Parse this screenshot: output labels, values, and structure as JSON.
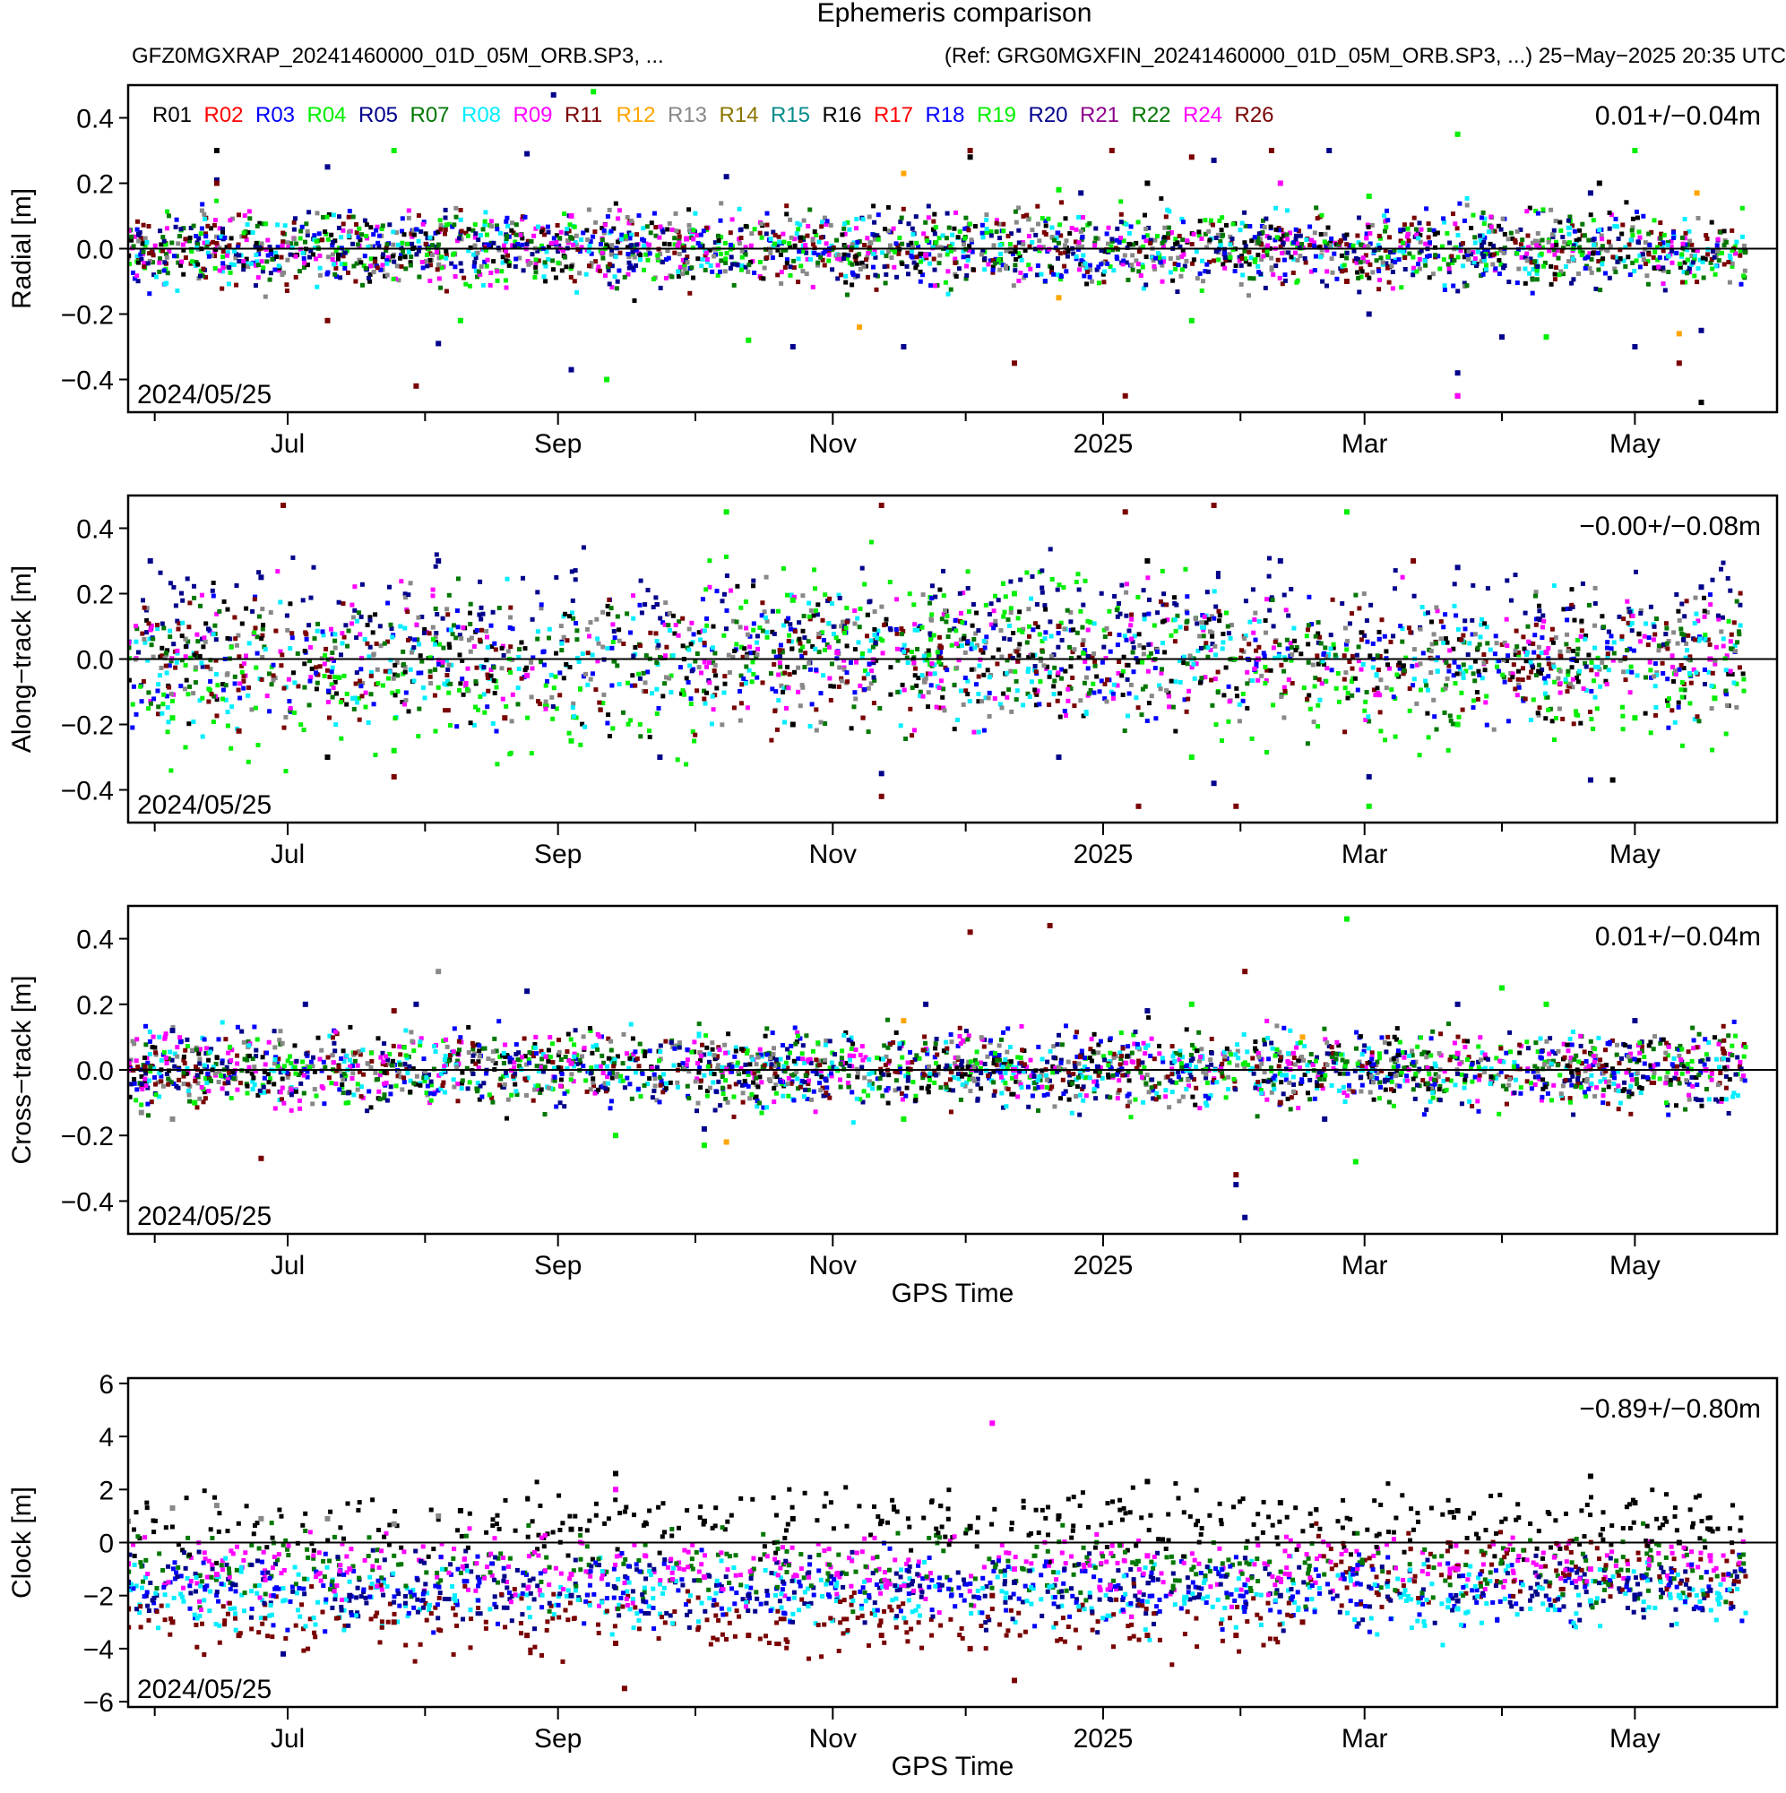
{
  "header": {
    "title": "Ephemeris comparison",
    "subtitle_left": "GFZ0MGXRAP_20241460000_01D_05M_ORB.SP3, ...",
    "subtitle_right": "(Ref: GRG0MGXFIN_20241460000_01D_05M_ORB.SP3, ...) 25−May−2025 20:35 UTC"
  },
  "legend": {
    "placement": "top-left of first panel",
    "entries": [
      {
        "name": "R01",
        "color": "#000000"
      },
      {
        "name": "R02",
        "color": "#ff0000"
      },
      {
        "name": "R03",
        "color": "#0000ff"
      },
      {
        "name": "R04",
        "color": "#00ee00"
      },
      {
        "name": "R05",
        "color": "#00008b"
      },
      {
        "name": "R07",
        "color": "#007700"
      },
      {
        "name": "R08",
        "color": "#00eeff"
      },
      {
        "name": "R09",
        "color": "#ff00ff"
      },
      {
        "name": "R11",
        "color": "#7a0000"
      },
      {
        "name": "R12",
        "color": "#ffa500"
      },
      {
        "name": "R13",
        "color": "#888888"
      },
      {
        "name": "R14",
        "color": "#8b7500"
      },
      {
        "name": "R15",
        "color": "#008b8b"
      },
      {
        "name": "R16",
        "color": "#000000"
      },
      {
        "name": "R17",
        "color": "#ff0000"
      },
      {
        "name": "R18",
        "color": "#0000ff"
      },
      {
        "name": "R19",
        "color": "#00ee00"
      },
      {
        "name": "R20",
        "color": "#00008b"
      },
      {
        "name": "R21",
        "color": "#8b008b"
      },
      {
        "name": "R22",
        "color": "#007700"
      },
      {
        "name": "R24",
        "color": "#ff00ff"
      },
      {
        "name": "R26",
        "color": "#7a0000"
      }
    ]
  },
  "chart_data": [
    {
      "type": "scatter",
      "ylabel": "Radial [m]",
      "xlabel": "",
      "ylim": [
        -0.5,
        0.5
      ],
      "yticks": [
        -0.4,
        -0.2,
        0.0,
        0.2,
        0.4
      ],
      "ytick_labels": [
        "−0.4",
        "−0.2",
        "0.0",
        "0.2",
        "0.4"
      ],
      "xticks": [
        "Jul",
        "Sep",
        "Nov",
        "2025",
        "Mar",
        "May"
      ],
      "stat_label": "0.01+/−0.04m",
      "date_label": "2024/05/25",
      "grid": false,
      "series": [
        {
          "name": "R05",
          "values": [
            [
              20,
              0.21
            ],
            [
              45,
              0.25
            ],
            [
              70,
              -0.29
            ],
            [
              90,
              0.29
            ],
            [
              96,
              0.47
            ],
            [
              100,
              -0.37
            ],
            [
              135,
              0.22
            ],
            [
              150,
              -0.3
            ],
            [
              175,
              -0.3
            ],
            [
              215,
              0.17
            ],
            [
              245,
              0.27
            ],
            [
              271,
              0.3
            ],
            [
              280,
              -0.2
            ],
            [
              300,
              -0.38
            ],
            [
              310,
              -0.27
            ],
            [
              330,
              0.17
            ],
            [
              340,
              -0.3
            ],
            [
              355,
              -0.25
            ]
          ]
        },
        {
          "name": "R04",
          "values": [
            [
              60,
              0.3
            ],
            [
              75,
              -0.22
            ],
            [
              105,
              0.48
            ],
            [
              108,
              -0.4
            ],
            [
              140,
              -0.28
            ],
            [
              210,
              0.18
            ],
            [
              240,
              -0.22
            ],
            [
              280,
              0.16
            ],
            [
              300,
              0.35
            ],
            [
              320,
              -0.27
            ],
            [
              340,
              0.3
            ]
          ]
        },
        {
          "name": "R11",
          "values": [
            [
              20,
              0.2
            ],
            [
              45,
              -0.22
            ],
            [
              65,
              -0.42
            ],
            [
              190,
              0.3
            ],
            [
              200,
              -0.35
            ],
            [
              222,
              0.3
            ],
            [
              225,
              -0.45
            ],
            [
              240,
              0.28
            ],
            [
              258,
              0.3
            ],
            [
              275,
              -0.1
            ],
            [
              300,
              -0.45
            ],
            [
              350,
              -0.35
            ]
          ]
        },
        {
          "name": "R24",
          "values": [
            [
              100,
              0.1
            ],
            [
              126,
              0.03
            ],
            [
              180,
              -0.02
            ],
            [
              260,
              0.2
            ],
            [
              300,
              -0.45
            ]
          ]
        },
        {
          "name": "R12",
          "values": [
            [
              165,
              -0.24
            ],
            [
              175,
              0.23
            ],
            [
              210,
              -0.15
            ],
            [
              350,
              -0.26
            ],
            [
              354,
              0.17
            ]
          ]
        },
        {
          "name": "R01",
          "values": [
            [
              20,
              0.3
            ],
            [
              190,
              0.28
            ],
            [
              230,
              0.2
            ],
            [
              332,
              0.2
            ],
            [
              355,
              -0.47
            ]
          ]
        }
      ]
    },
    {
      "type": "scatter",
      "ylabel": "Along−track [m]",
      "xlabel": "",
      "ylim": [
        -0.5,
        0.5
      ],
      "yticks": [
        -0.4,
        -0.2,
        0.0,
        0.2,
        0.4
      ],
      "ytick_labels": [
        "−0.4",
        "−0.2",
        "0.0",
        "0.2",
        "0.4"
      ],
      "xticks": [
        "Jul",
        "Sep",
        "Nov",
        "2025",
        "Mar",
        "May"
      ],
      "stat_label": "−0.00+/−0.08m",
      "date_label": "2024/05/25",
      "grid": false,
      "series": [
        {
          "name": "R05",
          "values": [
            [
              5,
              0.3
            ],
            [
              30,
              0.25
            ],
            [
              70,
              0.3
            ],
            [
              120,
              -0.3
            ],
            [
              170,
              -0.35
            ],
            [
              210,
              -0.3
            ],
            [
              245,
              -0.38
            ],
            [
              260,
              0.3
            ],
            [
              280,
              -0.36
            ],
            [
              300,
              0.28
            ],
            [
              330,
              -0.37
            ],
            [
              355,
              0.22
            ]
          ]
        },
        {
          "name": "R04",
          "values": [
            [
              10,
              -0.18
            ],
            [
              60,
              -0.28
            ],
            [
              100,
              -0.25
            ],
            [
              135,
              0.45
            ],
            [
              150,
              0.18
            ],
            [
              200,
              0.2
            ],
            [
              240,
              -0.3
            ],
            [
              275,
              0.45
            ],
            [
              280,
              -0.45
            ],
            [
              300,
              -0.2
            ],
            [
              340,
              -0.18
            ],
            [
              358,
              -0.12
            ]
          ]
        },
        {
          "name": "R11",
          "values": [
            [
              25,
              -0.22
            ],
            [
              35,
              0.47
            ],
            [
              60,
              -0.36
            ],
            [
              85,
              -0.18
            ],
            [
              170,
              0.47
            ],
            [
              170,
              -0.42
            ],
            [
              210,
              0.1
            ],
            [
              225,
              0.45
            ],
            [
              228,
              -0.45
            ],
            [
              245,
              0.47
            ],
            [
              250,
              -0.45
            ],
            [
              290,
              0.3
            ]
          ]
        },
        {
          "name": "R24",
          "values": [
            [
              0,
              0.05
            ],
            [
              90,
              -0.05
            ],
            [
              160,
              0.02
            ],
            [
              255,
              0.0
            ],
            [
              320,
              0.02
            ],
            [
              357,
              0.0
            ]
          ]
        },
        {
          "name": "R01",
          "values": [
            [
              45,
              -0.3
            ],
            [
              150,
              -0.2
            ],
            [
              230,
              0.3
            ],
            [
              335,
              -0.37
            ]
          ]
        }
      ]
    },
    {
      "type": "scatter",
      "ylabel": "Cross−track [m]",
      "xlabel": "GPS Time",
      "ylim": [
        -0.5,
        0.5
      ],
      "yticks": [
        -0.4,
        -0.2,
        0.0,
        0.2,
        0.4
      ],
      "ytick_labels": [
        "−0.4",
        "−0.2",
        "0.0",
        "0.2",
        "0.4"
      ],
      "xticks": [
        "Jul",
        "Sep",
        "Nov",
        "2025",
        "Mar",
        "May"
      ],
      "stat_label": "0.01+/−0.04m",
      "date_label": "2024/05/25",
      "grid": false,
      "series": [
        {
          "name": "R05",
          "values": [
            [
              10,
              0.12
            ],
            [
              40,
              0.2
            ],
            [
              65,
              0.2
            ],
            [
              90,
              0.24
            ],
            [
              130,
              -0.18
            ],
            [
              180,
              0.2
            ],
            [
              230,
              0.18
            ],
            [
              250,
              -0.35
            ],
            [
              252,
              -0.45
            ],
            [
              270,
              -0.15
            ],
            [
              300,
              0.2
            ],
            [
              340,
              0.15
            ]
          ]
        },
        {
          "name": "R04",
          "values": [
            [
              15,
              -0.1
            ],
            [
              110,
              -0.2
            ],
            [
              130,
              -0.23
            ],
            [
              175,
              -0.15
            ],
            [
              240,
              0.2
            ],
            [
              275,
              0.46
            ],
            [
              277,
              -0.28
            ],
            [
              310,
              0.25
            ],
            [
              320,
              0.2
            ]
          ]
        },
        {
          "name": "R11",
          "values": [
            [
              30,
              -0.27
            ],
            [
              60,
              0.18
            ],
            [
              190,
              0.42
            ],
            [
              208,
              0.44
            ],
            [
              250,
              -0.32
            ],
            [
              252,
              0.3
            ],
            [
              260,
              -0.1
            ]
          ]
        },
        {
          "name": "R13",
          "values": [
            [
              3,
              -0.13
            ],
            [
              70,
              0.3
            ],
            [
              10,
              -0.15
            ]
          ]
        },
        {
          "name": "R24",
          "values": [
            [
              0,
              0.0
            ],
            [
              100,
              0.02
            ],
            [
              200,
              0.0
            ],
            [
              262,
              0.02
            ],
            [
              300,
              0.05
            ],
            [
              356,
              0.0
            ]
          ]
        },
        {
          "name": "R12",
          "values": [
            [
              135,
              -0.22
            ],
            [
              175,
              0.15
            ],
            [
              265,
              0.1
            ]
          ]
        }
      ]
    },
    {
      "type": "scatter",
      "ylabel": "Clock [m]",
      "xlabel": "GPS Time",
      "ylim": [
        -6.2,
        6.2
      ],
      "yticks": [
        -6,
        -4,
        -2,
        0,
        2,
        4,
        6
      ],
      "ytick_labels": [
        "−6",
        "−4",
        "−2",
        "0",
        "2",
        "4",
        "6"
      ],
      "xticks": [
        "Jul",
        "Sep",
        "Nov",
        "2025",
        "Mar",
        "May"
      ],
      "stat_label": "−0.89+/−0.80m",
      "date_label": "2024/05/25",
      "grid": false,
      "series": [
        {
          "name": "R13",
          "values": [
            [
              0,
              0.8
            ],
            [
              10,
              1.3
            ],
            [
              20,
              1.4
            ],
            [
              30,
              0.9
            ],
            [
              45,
              0.9
            ],
            [
              60,
              0.7
            ],
            [
              70,
              1.0
            ]
          ]
        },
        {
          "name": "R01",
          "values": [
            [
              75,
              1.2
            ],
            [
              100,
              0.5
            ],
            [
              110,
              2.6
            ],
            [
              130,
              0.8
            ],
            [
              150,
              0.9
            ],
            [
              170,
              0.8
            ],
            [
              190,
              0.6
            ],
            [
              210,
              1.0
            ],
            [
              230,
              2.3
            ],
            [
              260,
              1.5
            ],
            [
              300,
              1.2
            ],
            [
              330,
              2.5
            ],
            [
              340,
              1.5
            ],
            [
              350,
              0.0
            ],
            [
              357,
              0.5
            ]
          ]
        },
        {
          "name": "R24",
          "values": [
            [
              0,
              -0.8
            ],
            [
              20,
              -1.2
            ],
            [
              50,
              -1.0
            ],
            [
              100,
              -1.2
            ],
            [
              110,
              2.0
            ],
            [
              130,
              -1.3
            ],
            [
              160,
              -1.2
            ],
            [
              195,
              4.5
            ],
            [
              200,
              -1.0
            ],
            [
              230,
              -0.5
            ],
            [
              262,
              -1.2
            ],
            [
              300,
              -1.0
            ],
            [
              330,
              -1.0
            ],
            [
              357,
              -0.5
            ]
          ]
        },
        {
          "name": "R05",
          "values": [
            [
              0,
              -1.5
            ],
            [
              35,
              -4.2
            ],
            [
              50,
              -2.0
            ],
            [
              100,
              -2.0
            ],
            [
              140,
              -2.0
            ],
            [
              200,
              -1.5
            ],
            [
              260,
              -2.0
            ],
            [
              300,
              -2.2
            ],
            [
              340,
              -2.0
            ],
            [
              357,
              -1.8
            ]
          ]
        },
        {
          "name": "R11",
          "values": [
            [
              0,
              -2.5
            ],
            [
              10,
              -3.0
            ],
            [
              25,
              -3.5
            ],
            [
              35,
              -5.8
            ],
            [
              60,
              -3.0
            ],
            [
              90,
              -3.5
            ],
            [
              110,
              -3.8
            ],
            [
              112,
              -5.5
            ],
            [
              140,
              -3.5
            ],
            [
              170,
              -3.5
            ],
            [
              190,
              -4.0
            ],
            [
              195,
              -2.0
            ],
            [
              200,
              -5.2
            ],
            [
              230,
              -3.5
            ],
            [
              250,
              -3.5
            ],
            [
              265,
              -3.0
            ]
          ]
        },
        {
          "name": "R08",
          "values": [
            [
              300,
              -2.5
            ],
            [
              330,
              -2.2
            ],
            [
              350,
              -2.0
            ]
          ]
        }
      ]
    }
  ]
}
